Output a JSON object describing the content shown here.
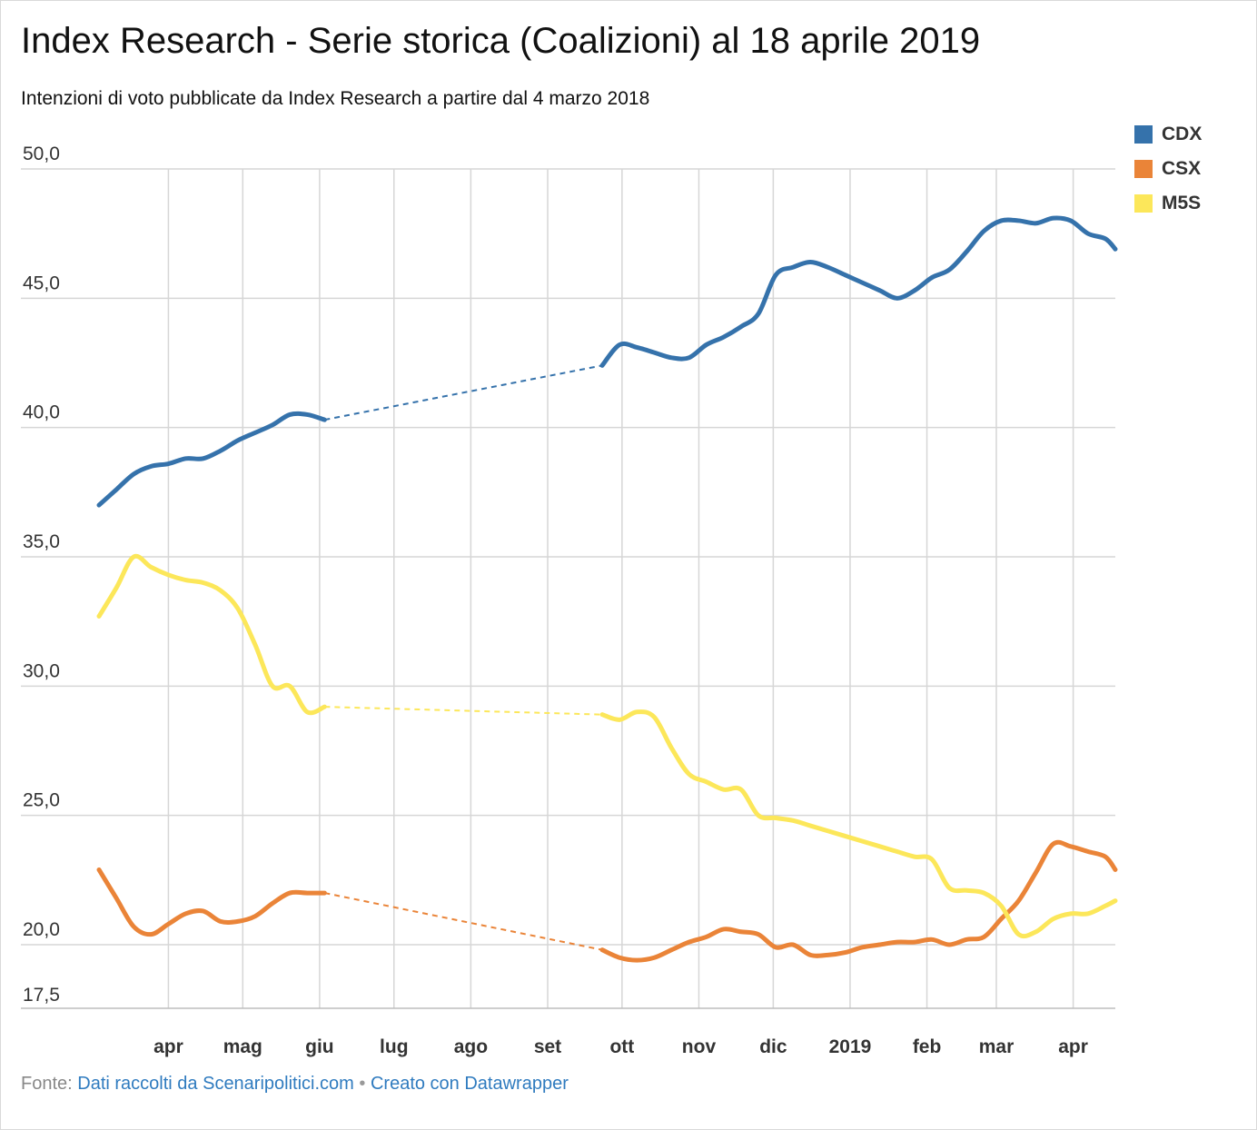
{
  "title": "Index Research - Serie storica (Coalizioni) al 18 aprile 2019",
  "subtitle": "Intenzioni di voto pubblicate da Index Research a partire dal 4 marzo 2018",
  "footer": {
    "source_label": "Fonte:",
    "source_link": "Dati raccolti da Scenaripolitici.com",
    "separator": "•",
    "made_with": "Creato con Datawrapper"
  },
  "legend": [
    {
      "name": "CDX",
      "color": "#3572ab"
    },
    {
      "name": "CSX",
      "color": "#ea8438"
    },
    {
      "name": "M5S",
      "color": "#fce75a"
    }
  ],
  "chart_data": {
    "type": "line",
    "title": "Index Research - Serie storica (Coalizioni) al 18 aprile 2019",
    "subtitle": "Intenzioni di voto pubblicate da Index Research a partire dal 4 marzo 2018",
    "xlabel": "",
    "ylabel": "",
    "xlim": [
      "2018-03-04",
      "2019-04-18"
    ],
    "ylim": [
      17.5,
      50.0
    ],
    "y_ticks": [
      {
        "value": 50.0,
        "label": "50,0"
      },
      {
        "value": 45.0,
        "label": "45,0"
      },
      {
        "value": 40.0,
        "label": "40,0"
      },
      {
        "value": 35.0,
        "label": "35,0"
      },
      {
        "value": 30.0,
        "label": "30,0"
      },
      {
        "value": 25.0,
        "label": "25,0"
      },
      {
        "value": 20.0,
        "label": "20,0"
      },
      {
        "value": 17.5,
        "label": "17,5"
      }
    ],
    "x_ticks": [
      {
        "date": "2018-04-01",
        "label": "apr"
      },
      {
        "date": "2018-05-01",
        "label": "mag"
      },
      {
        "date": "2018-06-01",
        "label": "giu"
      },
      {
        "date": "2018-07-01",
        "label": "lug"
      },
      {
        "date": "2018-08-01",
        "label": "ago"
      },
      {
        "date": "2018-09-01",
        "label": "set"
      },
      {
        "date": "2018-10-01",
        "label": "ott"
      },
      {
        "date": "2018-11-01",
        "label": "nov"
      },
      {
        "date": "2018-12-01",
        "label": "dic"
      },
      {
        "date": "2019-01-01",
        "label": "2019"
      },
      {
        "date": "2019-02-01",
        "label": "feb"
      },
      {
        "date": "2019-03-01",
        "label": "mar"
      },
      {
        "date": "2019-04-01",
        "label": "apr"
      }
    ],
    "grid": true,
    "legend_position": "top-right",
    "gap_between": [
      "2018-06-08",
      "2018-09-23"
    ],
    "series": [
      {
        "name": "CDX",
        "color": "#3572ab",
        "points": [
          [
            "2018-03-04",
            37.0
          ],
          [
            "2018-03-11",
            37.6
          ],
          [
            "2018-03-18",
            38.2
          ],
          [
            "2018-03-25",
            38.5
          ],
          [
            "2018-04-01",
            38.6
          ],
          [
            "2018-04-08",
            38.8
          ],
          [
            "2018-04-15",
            38.8
          ],
          [
            "2018-04-22",
            39.1
          ],
          [
            "2018-04-29",
            39.5
          ],
          [
            "2018-05-06",
            39.8
          ],
          [
            "2018-05-13",
            40.1
          ],
          [
            "2018-05-20",
            40.5
          ],
          [
            "2018-05-27",
            40.5
          ],
          [
            "2018-06-03",
            40.3
          ],
          [
            "2018-09-23",
            42.4
          ],
          [
            "2018-09-30",
            43.2
          ],
          [
            "2018-10-07",
            43.1
          ],
          [
            "2018-10-14",
            42.9
          ],
          [
            "2018-10-21",
            42.7
          ],
          [
            "2018-10-28",
            42.7
          ],
          [
            "2018-11-04",
            43.2
          ],
          [
            "2018-11-11",
            43.5
          ],
          [
            "2018-11-18",
            43.9
          ],
          [
            "2018-11-25",
            44.4
          ],
          [
            "2018-12-02",
            45.9
          ],
          [
            "2018-12-09",
            46.2
          ],
          [
            "2018-12-16",
            46.4
          ],
          [
            "2018-12-23",
            46.2
          ],
          [
            "2018-12-30",
            45.9
          ],
          [
            "2019-01-06",
            45.6
          ],
          [
            "2019-01-13",
            45.3
          ],
          [
            "2019-01-20",
            45.0
          ],
          [
            "2019-01-27",
            45.3
          ],
          [
            "2019-02-03",
            45.8
          ],
          [
            "2019-02-10",
            46.1
          ],
          [
            "2019-02-17",
            46.8
          ],
          [
            "2019-02-24",
            47.6
          ],
          [
            "2019-03-03",
            48.0
          ],
          [
            "2019-03-10",
            48.0
          ],
          [
            "2019-03-17",
            47.9
          ],
          [
            "2019-03-24",
            48.1
          ],
          [
            "2019-03-31",
            48.0
          ],
          [
            "2019-04-07",
            47.5
          ],
          [
            "2019-04-14",
            47.3
          ],
          [
            "2019-04-18",
            46.9
          ]
        ]
      },
      {
        "name": "CSX",
        "color": "#ea8438",
        "points": [
          [
            "2018-03-04",
            22.9
          ],
          [
            "2018-03-11",
            21.8
          ],
          [
            "2018-03-18",
            20.7
          ],
          [
            "2018-03-25",
            20.4
          ],
          [
            "2018-04-01",
            20.8
          ],
          [
            "2018-04-08",
            21.2
          ],
          [
            "2018-04-15",
            21.3
          ],
          [
            "2018-04-22",
            20.9
          ],
          [
            "2018-04-29",
            20.9
          ],
          [
            "2018-05-06",
            21.1
          ],
          [
            "2018-05-13",
            21.6
          ],
          [
            "2018-05-20",
            22.0
          ],
          [
            "2018-05-27",
            22.0
          ],
          [
            "2018-06-03",
            22.0
          ],
          [
            "2018-09-23",
            19.8
          ],
          [
            "2018-09-30",
            19.5
          ],
          [
            "2018-10-07",
            19.4
          ],
          [
            "2018-10-14",
            19.5
          ],
          [
            "2018-10-21",
            19.8
          ],
          [
            "2018-10-28",
            20.1
          ],
          [
            "2018-11-04",
            20.3
          ],
          [
            "2018-11-11",
            20.6
          ],
          [
            "2018-11-18",
            20.5
          ],
          [
            "2018-11-25",
            20.4
          ],
          [
            "2018-12-02",
            19.9
          ],
          [
            "2018-12-09",
            20.0
          ],
          [
            "2018-12-16",
            19.6
          ],
          [
            "2018-12-23",
            19.6
          ],
          [
            "2018-12-30",
            19.7
          ],
          [
            "2019-01-06",
            19.9
          ],
          [
            "2019-01-13",
            20.0
          ],
          [
            "2019-01-20",
            20.1
          ],
          [
            "2019-01-27",
            20.1
          ],
          [
            "2019-02-03",
            20.2
          ],
          [
            "2019-02-10",
            20.0
          ],
          [
            "2019-02-17",
            20.2
          ],
          [
            "2019-02-24",
            20.3
          ],
          [
            "2019-03-03",
            21.0
          ],
          [
            "2019-03-10",
            21.7
          ],
          [
            "2019-03-17",
            22.8
          ],
          [
            "2019-03-24",
            23.9
          ],
          [
            "2019-03-31",
            23.8
          ],
          [
            "2019-04-07",
            23.6
          ],
          [
            "2019-04-14",
            23.4
          ],
          [
            "2019-04-18",
            22.9
          ]
        ]
      },
      {
        "name": "M5S",
        "color": "#fce75a",
        "points": [
          [
            "2018-03-04",
            32.7
          ],
          [
            "2018-03-11",
            33.8
          ],
          [
            "2018-03-18",
            35.0
          ],
          [
            "2018-03-25",
            34.6
          ],
          [
            "2018-04-01",
            34.3
          ],
          [
            "2018-04-08",
            34.1
          ],
          [
            "2018-04-15",
            34.0
          ],
          [
            "2018-04-22",
            33.7
          ],
          [
            "2018-04-29",
            33.0
          ],
          [
            "2018-05-06",
            31.6
          ],
          [
            "2018-05-13",
            30.0
          ],
          [
            "2018-05-20",
            30.0
          ],
          [
            "2018-05-27",
            29.0
          ],
          [
            "2018-06-03",
            29.2
          ],
          [
            "2018-09-23",
            28.9
          ],
          [
            "2018-09-30",
            28.7
          ],
          [
            "2018-10-07",
            29.0
          ],
          [
            "2018-10-14",
            28.8
          ],
          [
            "2018-10-21",
            27.6
          ],
          [
            "2018-10-28",
            26.6
          ],
          [
            "2018-11-04",
            26.3
          ],
          [
            "2018-11-11",
            26.0
          ],
          [
            "2018-11-18",
            26.0
          ],
          [
            "2018-11-25",
            25.0
          ],
          [
            "2018-12-02",
            24.9
          ],
          [
            "2018-12-09",
            24.8
          ],
          [
            "2018-12-16",
            24.6
          ],
          [
            "2018-12-23",
            24.4
          ],
          [
            "2018-12-30",
            24.2
          ],
          [
            "2019-01-06",
            24.0
          ],
          [
            "2019-01-13",
            23.8
          ],
          [
            "2019-01-20",
            23.6
          ],
          [
            "2019-01-27",
            23.4
          ],
          [
            "2019-02-03",
            23.3
          ],
          [
            "2019-02-10",
            22.2
          ],
          [
            "2019-02-17",
            22.1
          ],
          [
            "2019-02-24",
            22.0
          ],
          [
            "2019-03-03",
            21.5
          ],
          [
            "2019-03-10",
            20.4
          ],
          [
            "2019-03-17",
            20.5
          ],
          [
            "2019-03-24",
            21.0
          ],
          [
            "2019-03-31",
            21.2
          ],
          [
            "2019-04-07",
            21.2
          ],
          [
            "2019-04-14",
            21.5
          ],
          [
            "2019-04-18",
            21.7
          ]
        ]
      }
    ]
  }
}
